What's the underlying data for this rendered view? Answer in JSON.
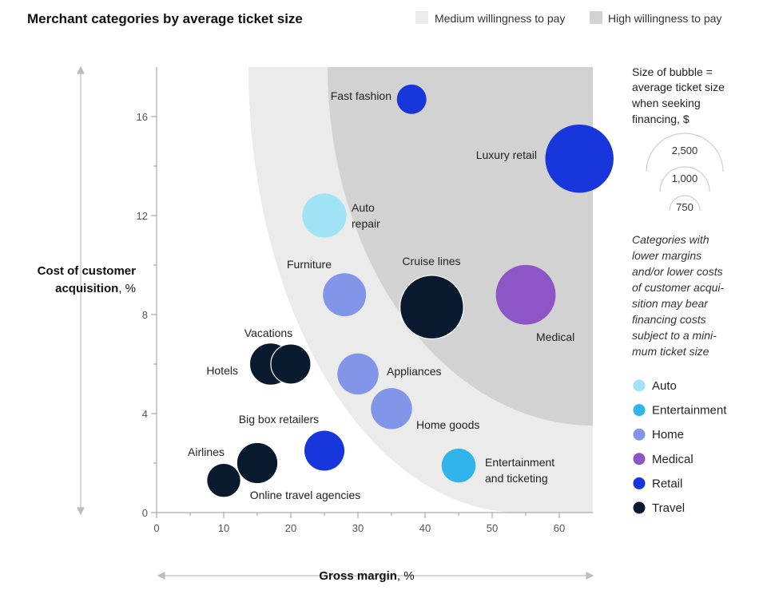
{
  "chart_data": {
    "type": "scatter",
    "title": "Merchant categories by average ticket size",
    "xlabel": "Gross margin",
    "xlabel_unit": ", %",
    "ylabel_line1": "Cost of customer",
    "ylabel_line2": "acquisition",
    "ylabel_unit": ", %",
    "xlim": [
      0,
      65
    ],
    "ylim": [
      0,
      18
    ],
    "xticks": [
      "0",
      "10",
      "20",
      "30",
      "40",
      "50",
      "60"
    ],
    "yticks": [
      "0",
      "4",
      "8",
      "12",
      "16"
    ],
    "regions": [
      {
        "name": "Medium willingness to pay",
        "color": "#ebebeb"
      },
      {
        "name": "High willingness to pay",
        "color": "#d2d2d2"
      }
    ],
    "categories": [
      {
        "name": "Auto",
        "color": "#9fe3f5"
      },
      {
        "name": "Entertainment",
        "color": "#2fb5ec"
      },
      {
        "name": "Home",
        "color": "#8195e9"
      },
      {
        "name": "Medical",
        "color": "#8e55c7"
      },
      {
        "name": "Retail",
        "color": "#1737dc"
      },
      {
        "name": "Travel",
        "color": "#0a1a2e"
      }
    ],
    "points": [
      {
        "label": "Fast fashion",
        "category": "Retail",
        "x": 38,
        "y": 16.7,
        "size": 300
      },
      {
        "label": "Luxury retail",
        "category": "Retail",
        "x": 63,
        "y": 14.3,
        "size": 2600
      },
      {
        "label": "Auto repair",
        "category": "Auto",
        "x": 25,
        "y": 12,
        "size": 900
      },
      {
        "label": "Furniture",
        "category": "Home",
        "x": 28,
        "y": 8.8,
        "size": 850
      },
      {
        "label": "Cruise lines",
        "category": "Travel",
        "x": 41,
        "y": 8.3,
        "size": 2200
      },
      {
        "label": "Medical",
        "category": "Medical",
        "x": 55,
        "y": 8.8,
        "size": 1900
      },
      {
        "label": "Vacations",
        "category": "Travel",
        "x": 20,
        "y": 6,
        "size": 700
      },
      {
        "label": "Hotels",
        "category": "Travel",
        "x": 17,
        "y": 6,
        "size": 800
      },
      {
        "label": "Appliances",
        "category": "Home",
        "x": 30,
        "y": 5.6,
        "size": 750
      },
      {
        "label": "Home goods",
        "category": "Home",
        "x": 35,
        "y": 4.2,
        "size": 750
      },
      {
        "label": "Big box retailers",
        "category": "Retail",
        "x": 25,
        "y": 2.5,
        "size": 700
      },
      {
        "label": "Entertainment and ticketing",
        "category": "Entertainment",
        "x": 45,
        "y": 1.9,
        "size": 450
      },
      {
        "label": "Online travel agencies",
        "category": "Travel",
        "x": 15,
        "y": 2,
        "size": 750
      },
      {
        "label": "Airlines",
        "category": "Travel",
        "x": 10,
        "y": 1.3,
        "size": 450
      }
    ],
    "size_key_title": [
      "Size of bubble =",
      "average ticket size",
      "when seeking",
      "financing, $"
    ],
    "size_key_values": [
      "2,500",
      "1,000",
      "750"
    ],
    "note_lines": [
      "Categories with",
      "lower margins",
      "and/or lower costs",
      "of customer acqui-",
      "sition may bear",
      "financing costs",
      "subject to a mini-",
      "mum ticket size"
    ]
  }
}
